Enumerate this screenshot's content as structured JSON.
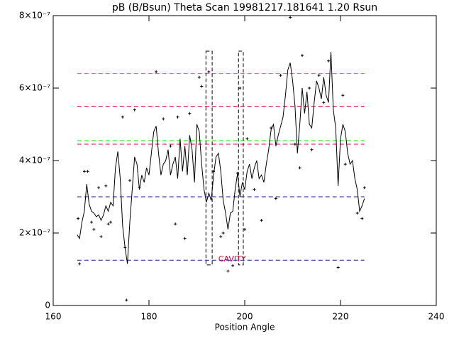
{
  "chart_data": {
    "type": "line",
    "title": "pB (B/Bsun) Theta Scan 19981217.181641 1.20 Rsun",
    "x_label": "Position Angle",
    "xlim": [
      160,
      240
    ],
    "xticks": [
      160,
      180,
      200,
      220,
      240
    ],
    "ylim": [
      0,
      8e-07
    ],
    "yticks": [
      0,
      {
        "value": 2e-07,
        "label": "2×10⁻⁷"
      },
      {
        "value": 4e-07,
        "label": "4×10⁻⁷"
      },
      {
        "value": 6e-07,
        "label": "6×10⁻⁷"
      },
      {
        "value": 8e-07,
        "label": "8×10⁻⁷"
      }
    ],
    "series": [
      {
        "type": "line",
        "color": "#000000",
        "x": [
          165,
          165.5,
          166,
          166.5,
          167,
          167.5,
          168,
          168.5,
          169,
          169.5,
          170,
          170.5,
          171,
          171.5,
          172,
          172.5,
          173,
          173.5,
          174,
          174.5,
          175,
          175.5,
          176,
          176.5,
          177,
          177.5,
          178,
          178.5,
          179,
          179.5,
          180,
          180.5,
          181,
          181.5,
          182,
          182.5,
          183,
          183.5,
          184,
          184.5,
          185,
          185.5,
          186,
          186.5,
          187,
          187.5,
          188,
          188.5,
          189,
          189.5,
          190,
          190.5,
          191,
          191.5,
          192,
          192.5,
          193,
          193.5,
          194,
          194.5,
          195,
          195.5,
          196,
          196.5,
          197,
          197.5,
          198,
          198.5,
          199,
          199.5,
          200,
          200.5,
          201,
          201.5,
          202,
          202.5,
          203,
          203.5,
          204,
          204.5,
          205,
          205.5,
          206,
          206.5,
          207,
          207.5,
          208,
          208.5,
          209,
          209.5,
          210,
          210.5,
          211,
          211.5,
          212,
          212.5,
          213,
          213.5,
          214,
          214.5,
          215,
          215.5,
          216,
          216.5,
          217,
          217.5,
          218,
          218.5,
          219,
          219.5,
          220,
          220.5,
          221,
          221.5,
          222,
          222.5,
          223,
          223.5,
          224,
          224.5,
          225
        ],
        "values": [
          1.95e-07,
          1.85e-07,
          2.3e-07,
          2.6e-07,
          3.35e-07,
          2.8e-07,
          2.6e-07,
          2.55e-07,
          2.45e-07,
          2.5e-07,
          2.35e-07,
          2.5e-07,
          2.75e-07,
          2.6e-07,
          2.85e-07,
          2.75e-07,
          3.8e-07,
          4.25e-07,
          3.5e-07,
          2.2e-07,
          1.6e-07,
          1.15e-07,
          2.3e-07,
          3.2e-07,
          4.1e-07,
          3.9e-07,
          3.2e-07,
          3.6e-07,
          3.4e-07,
          3.8e-07,
          3.6e-07,
          4.2e-07,
          4.8e-07,
          4.95e-07,
          4.2e-07,
          3.6e-07,
          3.9e-07,
          4e-07,
          4.3e-07,
          3.6e-07,
          3.9e-07,
          4.1e-07,
          3.5e-07,
          4.6e-07,
          3.7e-07,
          4.4e-07,
          3.6e-07,
          4.7e-07,
          4.3e-07,
          3.4e-07,
          5e-07,
          4.8e-07,
          3.9e-07,
          3.2e-07,
          2.85e-07,
          3.1e-07,
          2.9e-07,
          3.6e-07,
          4.1e-07,
          4.2e-07,
          3.7e-07,
          2.9e-07,
          2.55e-07,
          2.1e-07,
          2.55e-07,
          2.6e-07,
          3.2e-07,
          3.65e-07,
          3e-07,
          3.4e-07,
          3.2e-07,
          3.7e-07,
          3.9e-07,
          3.5e-07,
          3.8e-07,
          4e-07,
          3.5e-07,
          3.6e-07,
          3.4e-07,
          3.9e-07,
          4.3e-07,
          4.85e-07,
          5e-07,
          4.4e-07,
          4.7e-07,
          4.95e-07,
          5.2e-07,
          5.8e-07,
          6.5e-07,
          6.7e-07,
          6.2e-07,
          5.5e-07,
          4.2e-07,
          5e-07,
          6e-07,
          5.3e-07,
          5.9e-07,
          5e-07,
          4.9e-07,
          5.6e-07,
          6.2e-07,
          6e-07,
          5.7e-07,
          6.3e-07,
          5.8e-07,
          5.6e-07,
          7e-07,
          5.4e-07,
          4.9e-07,
          3.3e-07,
          4.6e-07,
          5e-07,
          4.8e-07,
          4.2e-07,
          3.9e-07,
          4e-07,
          3.5e-07,
          3.2e-07,
          2.6e-07,
          2.75e-07,
          2.95e-07
        ]
      },
      {
        "type": "scatter",
        "color": "#000000",
        "x": [
          165.2,
          165.5,
          166.5,
          167.2,
          168,
          168.5,
          169.5,
          170,
          171,
          171.5,
          172,
          174.5,
          175,
          175.3,
          176,
          177,
          178,
          181.5,
          183,
          184.5,
          185.5,
          186,
          187.5,
          188.5,
          190.5,
          191,
          192.5,
          193.5,
          195,
          195.5,
          196.5,
          197.5,
          198.5,
          199,
          200,
          200.5,
          202,
          203.5,
          205.5,
          206.5,
          207.5,
          209.5,
          210.5,
          211.5,
          212,
          213.5,
          214,
          215.5,
          216.5,
          217.5,
          219.5,
          220.5,
          221,
          223.5,
          224.5,
          225
        ],
        "values": [
          2.4e-07,
          1.15e-07,
          3.7e-07,
          3.7e-07,
          2.3e-07,
          2.1e-07,
          3.25e-07,
          1.9e-07,
          3.3e-07,
          2.25e-07,
          2.3e-07,
          5.2e-07,
          1.6e-07,
          1.5e-08,
          3.45e-07,
          5.4e-07,
          3.25e-07,
          6.45e-07,
          5.15e-07,
          4.4e-07,
          2.25e-07,
          5.2e-07,
          1.85e-07,
          5.3e-07,
          6.3e-07,
          6.05e-07,
          6.45e-07,
          3.7e-07,
          1.9e-07,
          2e-07,
          9.5e-08,
          1.1e-07,
          3.65e-07,
          6e-07,
          2.1e-07,
          4.6e-07,
          3.2e-07,
          2.35e-07,
          4.9e-07,
          2.95e-07,
          6.35e-07,
          7.95e-07,
          4.45e-07,
          3.8e-07,
          6.9e-07,
          6e-07,
          4.3e-07,
          6.35e-07,
          5.6e-07,
          6.75e-07,
          1.05e-07,
          5.8e-07,
          3.9e-07,
          2.55e-07,
          2.4e-07,
          3.25e-07
        ]
      }
    ],
    "reference_lines": [
      {
        "y": 6.4e-07,
        "color": "#00e000",
        "xlim": [
          165,
          225
        ]
      },
      {
        "y": 5.5e-07,
        "color": "#d0003a",
        "xlim": [
          165,
          225
        ]
      },
      {
        "y": 4.55e-07,
        "color": "#00e000",
        "xlim": [
          165,
          225
        ]
      },
      {
        "y": 4.45e-07,
        "color": "#d0003a",
        "xlim": [
          165,
          225
        ]
      },
      {
        "y": 3e-07,
        "color": "#1a1a8c",
        "xlim": [
          165,
          225
        ]
      },
      {
        "y": 1.25e-07,
        "color": "#1a1a8c",
        "xlim": [
          165,
          225
        ]
      }
    ],
    "boxes": [
      {
        "x": [
          191.9,
          193.2
        ],
        "y": [
          1.12e-07,
          7.02e-07
        ]
      },
      {
        "x": [
          198.7,
          199.7
        ],
        "y": [
          1.12e-07,
          7.02e-07
        ]
      }
    ],
    "annotation": {
      "text": "CAVITY",
      "x": 194.5,
      "y": 1.27e-07,
      "color": "#d0003a"
    }
  }
}
